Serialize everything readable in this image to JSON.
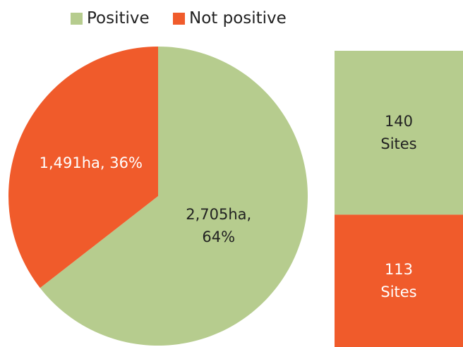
{
  "chart_data": [
    {
      "type": "pie",
      "categories": [
        "Positive",
        "Not positive"
      ],
      "values": [
        2705,
        1491
      ],
      "value_labels": [
        "2,705ha,\n64%",
        "1,491ha, 36%"
      ],
      "colors": [
        "#b6cc8e",
        "#f05b2b"
      ],
      "legend": "top"
    },
    {
      "type": "bar",
      "stacked": true,
      "series": [
        {
          "color": "#b6cc8e",
          "values": [
            140
          ],
          "value_labels": [
            "140\nSites"
          ]
        },
        {
          "color": "#f05b2b",
          "values": [
            113
          ],
          "value_labels": [
            "113\nSites"
          ]
        }
      ]
    }
  ]
}
